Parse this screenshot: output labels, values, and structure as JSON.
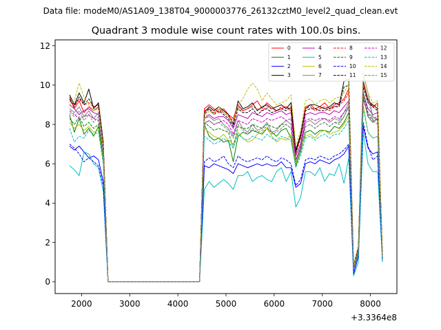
{
  "suptitle": "Data file: modeM0/AS1A09_138T04_9000003776_26132cztM0_level2_quad_clean.evt",
  "chart_data": {
    "type": "line",
    "title": "Quadrant 3 module wise count rates with 100.0s bins.",
    "xlabel": "",
    "ylabel": "",
    "offset_label": "+3.3364e8",
    "xlim": [
      1450,
      8550
    ],
    "ylim": [
      -0.6,
      12.3
    ],
    "xticks": [
      2000,
      3000,
      4000,
      5000,
      6000,
      7000,
      8000
    ],
    "xtick_labels": [
      "2000",
      "3000",
      "4000",
      "5000",
      "6000",
      "7000",
      "8000"
    ],
    "yticks": [
      0,
      2,
      4,
      6,
      8,
      10,
      12
    ],
    "ytick_labels": [
      "0",
      "2",
      "4",
      "6",
      "8",
      "10",
      "12"
    ],
    "grid": false,
    "legend_position": "top-right",
    "x": [
      1750,
      1850,
      1950,
      2050,
      2150,
      2250,
      2350,
      2450,
      2550,
      2650,
      2750,
      2850,
      2950,
      3050,
      3150,
      3250,
      3350,
      3450,
      3550,
      3650,
      3750,
      3850,
      3950,
      4050,
      4150,
      4250,
      4350,
      4450,
      4550,
      4650,
      4750,
      4850,
      4950,
      5050,
      5150,
      5250,
      5350,
      5450,
      5550,
      5650,
      5750,
      5850,
      5950,
      6050,
      6150,
      6250,
      6350,
      6450,
      6550,
      6650,
      6750,
      6850,
      6950,
      7050,
      7150,
      7250,
      7350,
      7450,
      7550,
      7650,
      7750,
      7850,
      7950,
      8050,
      8150,
      8250
    ],
    "series": [
      {
        "name": "0",
        "color": "#ff0000",
        "dash": "solid",
        "values": [
          9.4,
          8.8,
          9.2,
          8.6,
          8.9,
          8.7,
          8.9,
          7.0,
          0.0,
          0,
          0,
          0,
          0,
          0,
          0,
          0,
          0,
          0,
          0,
          0,
          0,
          0,
          0,
          0,
          0,
          0,
          0,
          0,
          8.8,
          9.0,
          8.8,
          8.6,
          8.8,
          8.5,
          8.3,
          9.0,
          8.7,
          8.8,
          9.0,
          9.2,
          8.8,
          9.1,
          8.9,
          8.7,
          8.8,
          8.9,
          8.7,
          6.6,
          7.4,
          8.9,
          9.0,
          8.8,
          8.9,
          9.1,
          8.8,
          9.0,
          9.1,
          9.3,
          9.8,
          0.7,
          1.7,
          10.2,
          9.3,
          8.9,
          9.1,
          1.3
        ]
      },
      {
        "name": "1",
        "color": "#008000",
        "dash": "solid",
        "values": [
          8.5,
          7.6,
          8.3,
          7.5,
          7.8,
          7.4,
          7.9,
          6.3,
          0.0,
          0,
          0,
          0,
          0,
          0,
          0,
          0,
          0,
          0,
          0,
          0,
          0,
          0,
          0,
          0,
          0,
          0,
          0,
          0,
          8.0,
          7.4,
          7.2,
          7.3,
          7.1,
          7.2,
          6.1,
          7.4,
          7.6,
          7.5,
          7.7,
          7.6,
          7.5,
          7.8,
          7.6,
          7.4,
          7.7,
          7.8,
          7.3,
          5.9,
          6.6,
          7.6,
          7.7,
          7.5,
          7.7,
          7.7,
          7.6,
          7.9,
          7.8,
          8.1,
          8.6,
          0.6,
          1.5,
          9.4,
          8.4,
          8.1,
          8.3,
          1.2
        ]
      },
      {
        "name": "2",
        "color": "#0000ff",
        "dash": "solid",
        "values": [
          6.9,
          6.7,
          6.9,
          6.6,
          6.3,
          6.4,
          6.2,
          5.1,
          0.0,
          0,
          0,
          0,
          0,
          0,
          0,
          0,
          0,
          0,
          0,
          0,
          0,
          0,
          0,
          0,
          0,
          0,
          0,
          0,
          5.9,
          5.8,
          6.0,
          5.9,
          5.8,
          5.7,
          5.5,
          6.0,
          5.9,
          5.8,
          5.9,
          6.0,
          5.9,
          6.0,
          5.9,
          5.9,
          6.1,
          5.8,
          5.8,
          4.8,
          5.0,
          6.0,
          6.1,
          6.0,
          6.2,
          6.1,
          6.0,
          6.2,
          6.3,
          6.5,
          6.9,
          0.4,
          1.3,
          7.9,
          6.8,
          6.5,
          6.6,
          1.1
        ]
      },
      {
        "name": "3",
        "color": "#000000",
        "dash": "solid",
        "values": [
          9.5,
          9.0,
          9.6,
          9.1,
          9.8,
          8.8,
          9.1,
          7.1,
          0.0,
          0,
          0,
          0,
          0,
          0,
          0,
          0,
          0,
          0,
          0,
          0,
          0,
          0,
          0,
          0,
          0,
          0,
          0,
          0,
          8.6,
          8.9,
          8.7,
          8.9,
          8.7,
          8.5,
          8.0,
          9.2,
          8.8,
          8.9,
          9.1,
          8.7,
          8.9,
          9.0,
          8.8,
          8.9,
          9.0,
          8.8,
          9.1,
          6.7,
          7.5,
          8.8,
          9.0,
          9.0,
          8.9,
          8.8,
          8.9,
          9.1,
          9.0,
          10.2,
          10.3,
          0.8,
          1.8,
          10.1,
          9.2,
          9.0,
          8.8,
          1.4
        ]
      },
      {
        "name": "4",
        "color": "#bf00bf",
        "dash": "solid",
        "values": [
          9.0,
          8.8,
          8.5,
          8.7,
          8.8,
          8.6,
          8.5,
          6.8,
          0.0,
          0,
          0,
          0,
          0,
          0,
          0,
          0,
          0,
          0,
          0,
          0,
          0,
          0,
          0,
          0,
          0,
          0,
          0,
          0,
          8.3,
          8.5,
          8.3,
          8.4,
          8.4,
          8.2,
          7.8,
          8.5,
          8.4,
          8.3,
          8.6,
          8.5,
          8.4,
          8.6,
          8.5,
          8.6,
          8.7,
          8.5,
          8.6,
          6.4,
          7.0,
          8.5,
          8.6,
          8.5,
          8.6,
          8.6,
          8.5,
          8.7,
          8.6,
          8.9,
          9.2,
          0.7,
          1.6,
          9.6,
          8.8,
          8.5,
          8.6,
          1.3
        ]
      },
      {
        "name": "5",
        "color": "#00bfbf",
        "dash": "solid",
        "values": [
          5.9,
          5.7,
          5.4,
          6.6,
          6.5,
          6.0,
          5.8,
          4.6,
          0.0,
          0,
          0,
          0,
          0,
          0,
          0,
          0,
          0,
          0,
          0,
          0,
          0,
          0,
          0,
          0,
          0,
          0,
          0,
          0,
          4.7,
          5.1,
          4.8,
          5.0,
          5.2,
          5.0,
          4.7,
          5.4,
          5.4,
          5.6,
          5.1,
          5.3,
          5.4,
          5.2,
          5.1,
          5.6,
          5.8,
          5.1,
          5.6,
          3.8,
          4.3,
          5.6,
          5.6,
          5.4,
          5.8,
          5.1,
          5.5,
          5.4,
          6.0,
          5.0,
          6.3,
          0.3,
          1.0,
          7.6,
          6.0,
          5.6,
          5.6,
          1.0
        ]
      },
      {
        "name": "6",
        "color": "#bfbf00",
        "dash": "solid",
        "values": [
          8.1,
          7.8,
          8.0,
          7.7,
          7.9,
          7.6,
          7.7,
          6.1,
          0.0,
          0,
          0,
          0,
          0,
          0,
          0,
          0,
          0,
          0,
          0,
          0,
          0,
          0,
          0,
          0,
          0,
          0,
          0,
          0,
          7.8,
          7.6,
          7.4,
          7.3,
          7.5,
          7.2,
          7.0,
          7.6,
          7.3,
          7.1,
          7.2,
          7.5,
          7.6,
          7.8,
          7.4,
          7.1,
          7.3,
          7.2,
          7.5,
          6.0,
          6.8,
          7.4,
          7.5,
          7.3,
          7.6,
          7.7,
          7.5,
          7.6,
          7.7,
          8.0,
          8.4,
          0.6,
          1.5,
          9.0,
          7.6,
          7.3,
          7.4,
          1.2
        ]
      },
      {
        "name": "7",
        "color": "#808080",
        "dash": "solid",
        "values": [
          8.8,
          8.6,
          8.9,
          8.4,
          8.7,
          8.3,
          8.6,
          6.8,
          0.0,
          0,
          0,
          0,
          0,
          0,
          0,
          0,
          0,
          0,
          0,
          0,
          0,
          0,
          0,
          0,
          0,
          0,
          0,
          0,
          8.3,
          8.4,
          8.2,
          8.3,
          8.0,
          7.8,
          7.4,
          8.2,
          7.8,
          7.6,
          8.0,
          7.7,
          7.8,
          8.1,
          7.6,
          7.7,
          8.0,
          8.2,
          8.0,
          6.2,
          6.8,
          8.1,
          8.2,
          8.0,
          8.2,
          8.3,
          8.1,
          8.3,
          8.2,
          8.6,
          9.1,
          0.7,
          1.6,
          10.6,
          9.6,
          8.4,
          8.2,
          1.3
        ]
      },
      {
        "name": "8",
        "color": "#ff0000",
        "dash": "dashed",
        "values": [
          9.2,
          9.0,
          9.3,
          9.0,
          9.1,
          8.9,
          9.0,
          7.0,
          0.0,
          0,
          0,
          0,
          0,
          0,
          0,
          0,
          0,
          0,
          0,
          0,
          0,
          0,
          0,
          0,
          0,
          0,
          0,
          0,
          8.7,
          8.8,
          8.6,
          8.8,
          8.6,
          8.4,
          8.2,
          8.9,
          8.7,
          8.8,
          8.9,
          8.8,
          8.7,
          8.9,
          8.8,
          8.7,
          8.9,
          8.9,
          8.8,
          6.5,
          7.3,
          8.8,
          8.9,
          8.7,
          8.8,
          8.9,
          8.7,
          8.9,
          9.0,
          9.2,
          9.6,
          0.7,
          1.7,
          10.1,
          9.2,
          8.9,
          9.0,
          1.3
        ]
      },
      {
        "name": "9",
        "color": "#008000",
        "dash": "dashed",
        "values": [
          8.3,
          8.0,
          8.4,
          7.9,
          8.1,
          7.8,
          8.0,
          6.4,
          0.0,
          0,
          0,
          0,
          0,
          0,
          0,
          0,
          0,
          0,
          0,
          0,
          0,
          0,
          0,
          0,
          0,
          0,
          0,
          0,
          8.1,
          7.9,
          7.7,
          7.8,
          7.7,
          7.6,
          6.8,
          7.9,
          7.8,
          7.8,
          8.0,
          7.9,
          7.8,
          8.0,
          7.9,
          7.8,
          8.0,
          8.0,
          7.8,
          6.1,
          6.9,
          7.9,
          8.0,
          7.8,
          8.0,
          8.1,
          7.9,
          8.1,
          8.1,
          8.4,
          8.9,
          0.6,
          1.6,
          9.6,
          8.6,
          8.3,
          8.4,
          1.2
        ]
      },
      {
        "name": "10",
        "color": "#0000ff",
        "dash": "dashed",
        "values": [
          7.0,
          6.8,
          6.5,
          6.1,
          6.3,
          6.1,
          5.9,
          4.9,
          0.0,
          0,
          0,
          0,
          0,
          0,
          0,
          0,
          0,
          0,
          0,
          0,
          0,
          0,
          0,
          0,
          0,
          0,
          0,
          0,
          6.1,
          6.3,
          6.1,
          6.2,
          6.4,
          6.0,
          5.8,
          6.4,
          6.2,
          6.1,
          6.2,
          6.3,
          6.2,
          6.4,
          6.2,
          6.1,
          6.3,
          6.2,
          6.0,
          4.9,
          5.2,
          6.2,
          6.3,
          6.2,
          6.4,
          6.3,
          6.2,
          6.4,
          6.5,
          6.7,
          7.0,
          0.4,
          1.3,
          8.1,
          6.9,
          6.2,
          6.4,
          1.1
        ]
      },
      {
        "name": "11",
        "color": "#000000",
        "dash": "dashed",
        "values": [
          9.3,
          8.9,
          9.4,
          9.0,
          9.3,
          8.9,
          9.0,
          7.0,
          0.0,
          0,
          0,
          0,
          0,
          0,
          0,
          0,
          0,
          0,
          0,
          0,
          0,
          0,
          0,
          0,
          0,
          0,
          0,
          0,
          8.5,
          8.8,
          8.5,
          8.7,
          8.5,
          8.3,
          7.9,
          8.8,
          8.6,
          8.6,
          8.8,
          8.5,
          8.7,
          8.8,
          8.6,
          8.7,
          8.8,
          8.7,
          8.9,
          6.6,
          7.4,
          8.7,
          8.8,
          8.8,
          8.7,
          8.7,
          8.8,
          8.9,
          8.9,
          9.9,
          10.0,
          0.8,
          1.8,
          9.9,
          9.1,
          8.9,
          8.7,
          1.3
        ]
      },
      {
        "name": "12",
        "color": "#bf00bf",
        "dash": "dashed",
        "values": [
          8.7,
          8.5,
          8.3,
          8.4,
          8.5,
          8.3,
          8.2,
          6.6,
          0.0,
          0,
          0,
          0,
          0,
          0,
          0,
          0,
          0,
          0,
          0,
          0,
          0,
          0,
          0,
          0,
          0,
          0,
          0,
          0,
          8.0,
          8.2,
          8.0,
          8.1,
          8.2,
          8.0,
          7.5,
          8.2,
          8.1,
          8.0,
          8.3,
          8.2,
          8.1,
          8.3,
          8.2,
          8.3,
          8.4,
          8.2,
          8.3,
          6.2,
          6.8,
          8.2,
          8.3,
          8.2,
          8.3,
          8.3,
          8.2,
          8.4,
          8.3,
          8.6,
          8.9,
          0.6,
          1.5,
          9.3,
          8.5,
          8.2,
          8.3,
          1.2
        ]
      },
      {
        "name": "13",
        "color": "#00bfbf",
        "dash": "dashed",
        "values": [
          7.8,
          7.1,
          7.4,
          7.3,
          7.7,
          7.5,
          7.6,
          6.0,
          0.0,
          0,
          0,
          0,
          0,
          0,
          0,
          0,
          0,
          0,
          0,
          0,
          0,
          0,
          0,
          0,
          0,
          0,
          0,
          0,
          7.4,
          7.2,
          7.0,
          7.1,
          7.3,
          7.1,
          6.8,
          7.5,
          7.3,
          7.2,
          7.4,
          7.3,
          7.2,
          7.5,
          7.3,
          7.2,
          7.4,
          7.3,
          7.2,
          5.8,
          6.4,
          7.3,
          7.4,
          7.2,
          7.4,
          7.5,
          7.3,
          7.5,
          7.5,
          7.8,
          8.2,
          0.6,
          1.4,
          8.8,
          7.6,
          7.3,
          7.4,
          1.2
        ]
      },
      {
        "name": "14",
        "color": "#bfbf00",
        "dash": "dashed",
        "values": [
          9.0,
          9.2,
          10.1,
          9.4,
          9.0,
          8.7,
          8.8,
          6.9,
          0.0,
          0,
          0,
          0,
          0,
          0,
          0,
          0,
          0,
          0,
          0,
          0,
          0,
          0,
          0,
          0,
          0,
          0,
          0,
          0,
          8.3,
          8.7,
          8.5,
          8.9,
          8.6,
          8.4,
          8.1,
          9.0,
          9.3,
          9.8,
          10.1,
          9.8,
          9.2,
          9.6,
          9.3,
          9.0,
          9.1,
          9.2,
          9.5,
          6.9,
          7.7,
          9.2,
          9.3,
          9.0,
          9.2,
          9.3,
          9.1,
          9.3,
          9.4,
          9.6,
          10.1,
          0.8,
          1.8,
          10.7,
          9.6,
          9.1,
          9.2,
          1.3
        ]
      },
      {
        "name": "15",
        "color": "#808080",
        "dash": "dashed",
        "values": [
          8.6,
          8.4,
          8.7,
          8.2,
          8.5,
          8.1,
          8.4,
          6.7,
          0.0,
          0,
          0,
          0,
          0,
          0,
          0,
          0,
          0,
          0,
          0,
          0,
          0,
          0,
          0,
          0,
          0,
          0,
          0,
          0,
          8.1,
          8.2,
          8.0,
          8.1,
          7.9,
          7.7,
          7.3,
          8.0,
          7.7,
          7.5,
          7.8,
          7.6,
          7.7,
          7.9,
          7.5,
          7.6,
          7.8,
          8.0,
          7.8,
          6.1,
          6.7,
          7.9,
          8.0,
          7.8,
          8.0,
          8.1,
          7.9,
          8.1,
          8.0,
          8.4,
          8.9,
          0.7,
          1.5,
          10.3,
          9.3,
          8.2,
          8.0,
          1.3
        ]
      }
    ]
  }
}
